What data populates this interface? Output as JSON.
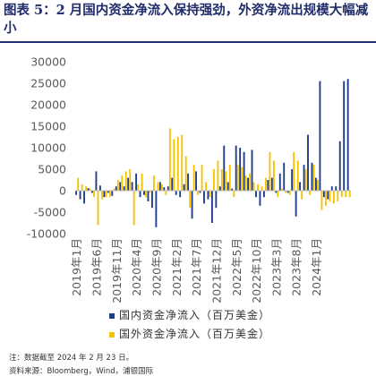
{
  "header": {
    "prefix": "图表 5：",
    "title": "2 月国内资金净流入保持强劲，外资净流出规模大幅减小"
  },
  "colors": {
    "domestic": "#1f3b8c",
    "foreign": "#f5c400",
    "title": "#1f2d6b",
    "axis": "#bfbfbf",
    "text": "#595959"
  },
  "legend": {
    "domestic": "国内资金净流入（百万美金）",
    "foreign": "国外资金净流入（百万美金）"
  },
  "footer": {
    "note": "注：数据截至 2024 年 2 月 23 日。",
    "source": "资料来源：Bloomberg，Wind，浦银国际"
  },
  "chart_data": {
    "type": "bar",
    "ylim": [
      -10000,
      30000
    ],
    "yticks": [
      -10000,
      -5000,
      0,
      5000,
      10000,
      15000,
      20000,
      25000,
      30000
    ],
    "xtick_labels": [
      "2019年1月",
      "2019年6月",
      "2019年11月",
      "2020年4月",
      "2020年9月",
      "2021年2月",
      "2021年7月",
      "2021年12月",
      "2022年5月",
      "2022年10月",
      "2023年3月",
      "2023年8月",
      "2024年1月"
    ],
    "xtick_every": 5,
    "x_start": "2019-01",
    "series": [
      {
        "name": "国内资金净流入（百万美金）",
        "values": [
          -1000,
          -2000,
          -3000,
          600,
          -500,
          4500,
          1200,
          -1500,
          -500,
          -1200,
          1000,
          2000,
          1000,
          3000,
          2000,
          4000,
          -1500,
          -1000,
          -2500,
          -4000,
          -8500,
          2000,
          800,
          1000,
          3000,
          -1000,
          -1500,
          1500,
          4000,
          -6500,
          4500,
          -500,
          -3000,
          -2000,
          -7500,
          -4000,
          1000,
          10500,
          2000,
          500,
          10500,
          10000,
          9000,
          3000,
          9500,
          -1500,
          -3500,
          -1500,
          2500,
          3000,
          -500,
          4000,
          6500,
          -500,
          5000,
          -6000,
          2000,
          6000,
          13000,
          6500,
          3000,
          25500,
          -1500,
          -2000,
          1000,
          1000,
          11500,
          25500,
          26000
        ]
      },
      {
        "name": "国外资金净流入（百万美金）",
        "values": [
          3000,
          1500,
          1000,
          500,
          -1500,
          -8000,
          -2000,
          -1500,
          -1500,
          500,
          2500,
          3500,
          4500,
          5000,
          -8000,
          1500,
          4000,
          -1500,
          -500,
          3500,
          2000,
          1500,
          -1000,
          14500,
          12000,
          12500,
          13000,
          8000,
          -4000,
          6000,
          -1000,
          6000,
          2000,
          -1500,
          5000,
          7000,
          5000,
          4500,
          6000,
          -1500,
          6000,
          5500,
          3500,
          4000,
          2000,
          1500,
          1000,
          3000,
          9000,
          7000,
          -1500,
          500,
          -500,
          -1000,
          9000,
          7000,
          -2000,
          5000,
          -1000,
          6000,
          2500,
          -4500,
          -3500,
          -2500,
          -3000,
          -2500,
          -1500,
          -1500,
          -1500
        ]
      }
    ]
  }
}
